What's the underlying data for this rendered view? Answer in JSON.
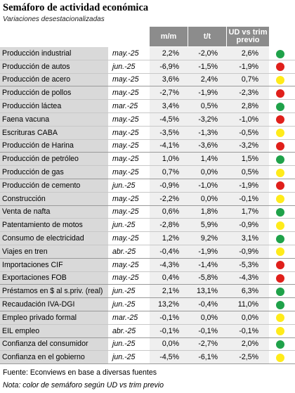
{
  "header": {
    "title": "Semáforo de actividad económica",
    "subtitle": "Variaciones desestacionalizadas",
    "columns": [
      "m/m",
      "t/t",
      "UD vs trim previo"
    ]
  },
  "colors": {
    "green": "#1fa24a",
    "red": "#e0201b",
    "yellow": "#ffeb1a",
    "header_bg": "#8c8c8c",
    "name_bg": "#d9d9d9"
  },
  "rows": [
    {
      "name": "Producción industrial",
      "date": "may.-25",
      "mm": "2,2%",
      "tt": "-2,0%",
      "ud": "2,6%",
      "light": "green"
    },
    {
      "name": "Producción de autos",
      "date": "jun.-25",
      "mm": "-6,9%",
      "tt": "-1,5%",
      "ud": "-1,9%",
      "light": "red"
    },
    {
      "name": "Producción de acero",
      "date": "may.-25",
      "mm": "3,6%",
      "tt": "2,4%",
      "ud": "0,7%",
      "light": "yellow",
      "group_end": true
    },
    {
      "name": "Producción de pollos",
      "date": "may.-25",
      "mm": "-2,7%",
      "tt": "-1,9%",
      "ud": "-2,3%",
      "light": "red"
    },
    {
      "name": "Producción láctea",
      "date": "mar.-25",
      "mm": "3,4%",
      "tt": "0,5%",
      "ud": "2,8%",
      "light": "green"
    },
    {
      "name": "Faena vacuna",
      "date": "may.-25",
      "mm": "-4,5%",
      "tt": "-3,2%",
      "ud": "-1,0%",
      "light": "red"
    },
    {
      "name": "Escrituras CABA",
      "date": "may.-25",
      "mm": "-3,5%",
      "tt": "-1,3%",
      "ud": "-0,5%",
      "light": "yellow"
    },
    {
      "name": "Producción de Harina",
      "date": "may.-25",
      "mm": "-4,1%",
      "tt": "-3,6%",
      "ud": "-3,2%",
      "light": "red",
      "group_end": true
    },
    {
      "name": "Producción de petróleo",
      "date": "may.-25",
      "mm": "1,0%",
      "tt": "1,4%",
      "ud": "1,5%",
      "light": "green"
    },
    {
      "name": "Producción de gas",
      "date": "may.-25",
      "mm": "0,7%",
      "tt": "0,0%",
      "ud": "0,5%",
      "light": "yellow",
      "group_end": true
    },
    {
      "name": "Producción de cemento",
      "date": "jun.-25",
      "mm": "-0,9%",
      "tt": "-1,0%",
      "ud": "-1,9%",
      "light": "red"
    },
    {
      "name": "Construcción",
      "date": "may.-25",
      "mm": "-2,2%",
      "tt": "0,0%",
      "ud": "-0,1%",
      "light": "yellow",
      "group_end": true
    },
    {
      "name": "Venta de nafta",
      "date": "may.-25",
      "mm": "0,6%",
      "tt": "1,8%",
      "ud": "1,7%",
      "light": "green"
    },
    {
      "name": "Patentamiento de motos",
      "date": "jun.-25",
      "mm": "-2,8%",
      "tt": "5,9%",
      "ud": "-0,9%",
      "light": "yellow"
    },
    {
      "name": "Consumo de electricidad",
      "date": "may.-25",
      "mm": "1,2%",
      "tt": "9,2%",
      "ud": "3,1%",
      "light": "green"
    },
    {
      "name": "Viajes en tren",
      "date": "abr.-25",
      "mm": "-0,4%",
      "tt": "-1,9%",
      "ud": "-0,9%",
      "light": "yellow",
      "group_end": true
    },
    {
      "name": "Importaciones CIF",
      "date": "may.-25",
      "mm": "-4,3%",
      "tt": "-1,4%",
      "ud": "-5,3%",
      "light": "red"
    },
    {
      "name": "Exportaciones FOB",
      "date": "may.-25",
      "mm": "0,4%",
      "tt": "-5,8%",
      "ud": "-4,3%",
      "light": "red",
      "group_end": true
    },
    {
      "name": "Préstamos en $ al s.priv. (real)",
      "date": "jun.-25",
      "mm": "2,1%",
      "tt": "13,1%",
      "ud": "6,3%",
      "light": "green",
      "group_end": true
    },
    {
      "name": "Recaudación IVA-DGI",
      "date": "jun.-25",
      "mm": "13,2%",
      "tt": "-0,4%",
      "ud": "11,0%",
      "light": "green",
      "group_end": true
    },
    {
      "name": "Empleo privado formal",
      "date": "mar.-25",
      "mm": "-0,1%",
      "tt": "0,0%",
      "ud": "0,0%",
      "light": "yellow"
    },
    {
      "name": "EIL empleo",
      "date": "abr.-25",
      "mm": "-0,1%",
      "tt": "-0,1%",
      "ud": "-0,1%",
      "light": "yellow",
      "group_end": true
    },
    {
      "name": "Confianza del consumidor",
      "date": "jun.-25",
      "mm": "0,0%",
      "tt": "-2,7%",
      "ud": "2,0%",
      "light": "green"
    },
    {
      "name": "Confianza en el gobierno",
      "date": "jun.-25",
      "mm": "-4,5%",
      "tt": "-6,1%",
      "ud": "-2,5%",
      "light": "yellow",
      "group_end": true
    }
  ],
  "footer": {
    "source": "Fuente: Econviews en base a diversas fuentes",
    "note": "Nota: color de semáforo según UD vs trim previo"
  }
}
